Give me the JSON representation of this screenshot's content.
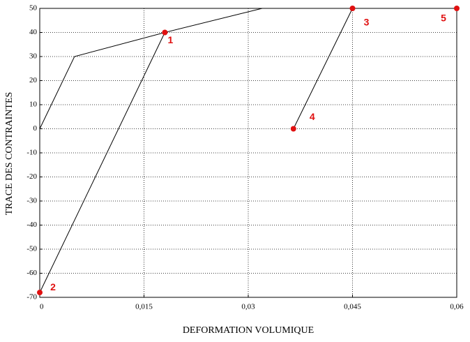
{
  "chart_data": {
    "type": "line",
    "xlabel": "DEFORMATION VOLUMIQUE",
    "ylabel": "TRACE DES CONTRAINTES",
    "xlim": [
      0,
      0.06
    ],
    "ylim": [
      -70,
      50
    ],
    "xticks": [
      0,
      {
        "value": 0.015,
        "label": "0,015"
      },
      {
        "value": 0.03,
        "label": "0,03"
      },
      {
        "value": 0.045,
        "label": "0,045"
      },
      {
        "value": 0.06,
        "label": "0,06"
      }
    ],
    "yticks": [
      -70,
      -60,
      -50,
      -40,
      -30,
      -20,
      -10,
      0,
      10,
      20,
      30,
      40,
      50
    ],
    "grid": true,
    "series": [
      {
        "color": "#000000",
        "x": [
          0,
          0.005,
          0.018,
          0,
          0.018,
          0.032,
          0.045,
          0.0365,
          0.045,
          0.06
        ],
        "values": [
          0,
          30,
          40,
          -68,
          40,
          50,
          50,
          0,
          50,
          50
        ]
      }
    ],
    "points": {
      "color": "#e01010",
      "labels": [
        "1",
        "2",
        "3",
        "4",
        "5"
      ],
      "x": [
        0.018,
        0,
        0.045,
        0.0365,
        0.06
      ],
      "values": [
        40,
        -68,
        50,
        0,
        50
      ]
    }
  }
}
